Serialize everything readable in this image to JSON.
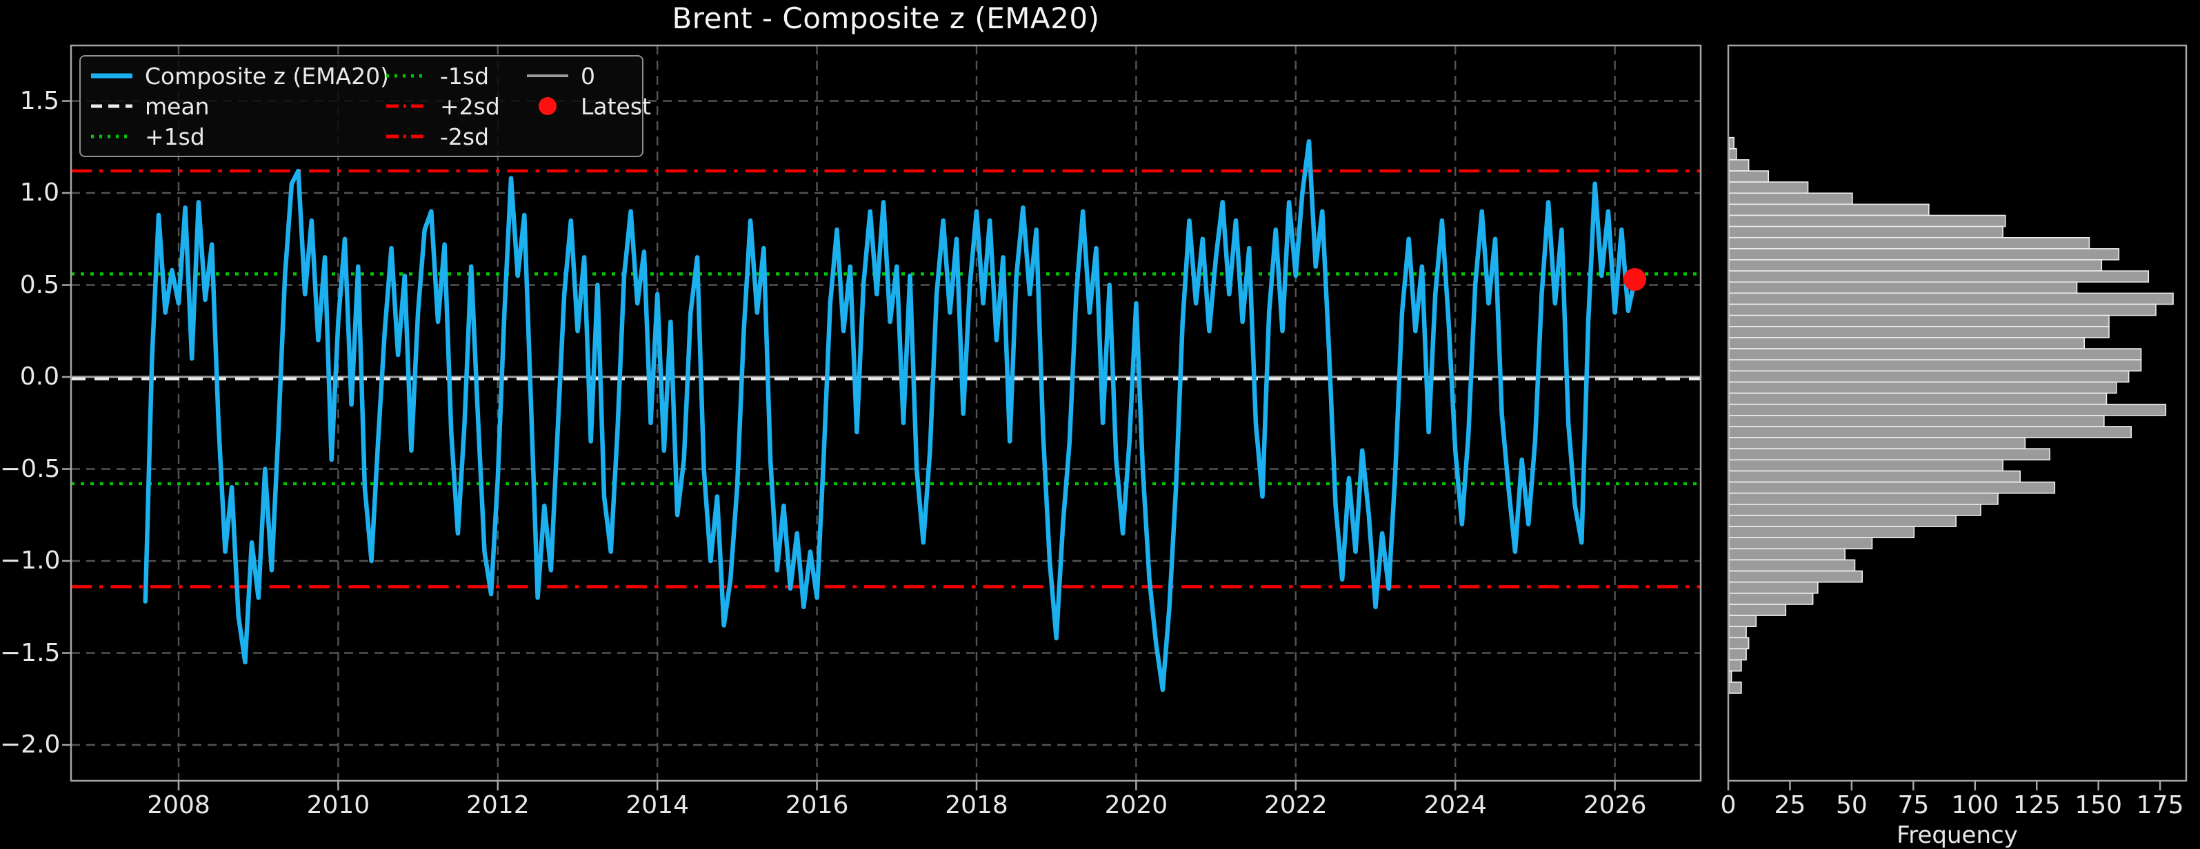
{
  "title": "Brent - Composite z (EMA20)",
  "colors": {
    "background": "#000000",
    "text": "#e8e8e8",
    "spine": "#a6a6a6",
    "grid": "#545454",
    "composite_line": "#1cb0ef",
    "sd1_green": "#00c800",
    "sd2_red": "#f40000",
    "mean_white": "#ececec",
    "zero_gray": "#9c9c9c",
    "latest_red": "#ff1010",
    "bar_fill": "#9b9b9b",
    "bar_edge": "#efefef"
  },
  "legend": {
    "items": [
      {
        "label": "Composite z (EMA20)",
        "swatch": "solid",
        "color": "#1cb0ef",
        "lw": 7
      },
      {
        "label": "-1sd",
        "swatch": "dotted",
        "color": "#00c800",
        "lw": 5
      },
      {
        "label": "0",
        "swatch": "solid",
        "color": "#9c9c9c",
        "lw": 4
      },
      {
        "label": "mean",
        "swatch": "dashed",
        "color": "#ececec",
        "lw": 5
      },
      {
        "label": "+2sd",
        "swatch": "dashdot",
        "color": "#f40000",
        "lw": 5
      },
      {
        "label": "Latest",
        "swatch": "dot",
        "color": "#ff1010",
        "lw": 0
      },
      {
        "label": "+1sd",
        "swatch": "dotted",
        "color": "#00c800",
        "lw": 5
      },
      {
        "label": "-2sd",
        "swatch": "dashdot",
        "color": "#f40000",
        "lw": 5
      }
    ]
  },
  "axes": {
    "main": {
      "x_tick_labels": [
        "2008",
        "2010",
        "2012",
        "2014",
        "2016",
        "2018",
        "2020",
        "2022",
        "2024",
        "2026"
      ],
      "y_tick_labels": [
        "1.5",
        "1.0",
        "0.5",
        "0.0",
        "−0.5",
        "−1.0",
        "−1.5",
        "−2.0"
      ]
    },
    "hist": {
      "x_tick_labels": [
        "0",
        "25",
        "50",
        "75",
        "100",
        "125",
        "150",
        "175"
      ],
      "xlabel": "Frequency"
    }
  },
  "chart_data": [
    {
      "type": "line",
      "title": "Brent - Composite z (EMA20)",
      "xlabel": "",
      "ylabel": "",
      "xlim": [
        2006.65,
        2027.08
      ],
      "ylim": [
        -2.2,
        1.8
      ],
      "x_ticks": [
        2008,
        2010,
        2012,
        2014,
        2016,
        2018,
        2020,
        2022,
        2024,
        2026
      ],
      "y_ticks": [
        1.5,
        1.0,
        0.5,
        0.0,
        -0.5,
        -1.0,
        -1.5,
        -2.0
      ],
      "grid": true,
      "legend_position": "upper left",
      "series": [
        {
          "name": "Composite z (EMA20)",
          "color": "#1cb0ef",
          "x_start": 2007.583,
          "x_step": 0.083333,
          "values": [
            -1.22,
            0.1,
            0.88,
            0.35,
            0.58,
            0.4,
            0.92,
            0.1,
            0.95,
            0.42,
            0.72,
            -0.25,
            -0.95,
            -0.6,
            -1.3,
            -1.55,
            -0.9,
            -1.2,
            -0.5,
            -1.05,
            -0.3,
            0.55,
            1.05,
            1.12,
            0.45,
            0.85,
            0.2,
            0.65,
            -0.45,
            0.3,
            0.75,
            -0.15,
            0.6,
            -0.6,
            -1.0,
            -0.35,
            0.25,
            0.7,
            0.12,
            0.55,
            -0.4,
            0.35,
            0.8,
            0.9,
            0.3,
            0.72,
            -0.3,
            -0.85,
            -0.25,
            0.6,
            -0.2,
            -0.95,
            -1.18,
            -0.55,
            0.35,
            1.08,
            0.55,
            0.88,
            -0.15,
            -1.2,
            -0.7,
            -1.05,
            -0.3,
            0.45,
            0.85,
            0.25,
            0.65,
            -0.35,
            0.5,
            -0.65,
            -0.95,
            -0.3,
            0.55,
            0.9,
            0.4,
            0.68,
            -0.25,
            0.45,
            -0.4,
            0.3,
            -0.75,
            -0.45,
            0.35,
            0.65,
            -0.5,
            -1.0,
            -0.65,
            -1.35,
            -1.1,
            -0.6,
            0.25,
            0.85,
            0.35,
            0.7,
            -0.45,
            -1.05,
            -0.7,
            -1.15,
            -0.85,
            -1.25,
            -0.95,
            -1.2,
            -0.45,
            0.4,
            0.8,
            0.25,
            0.6,
            -0.3,
            0.5,
            0.9,
            0.45,
            0.95,
            0.3,
            0.6,
            -0.25,
            0.55,
            -0.5,
            -0.9,
            -0.4,
            0.45,
            0.85,
            0.35,
            0.75,
            -0.2,
            0.5,
            0.9,
            0.4,
            0.85,
            0.2,
            0.65,
            -0.35,
            0.55,
            0.92,
            0.45,
            0.8,
            -0.3,
            -1.0,
            -1.42,
            -0.8,
            -0.35,
            0.45,
            0.9,
            0.35,
            0.7,
            -0.25,
            0.5,
            -0.45,
            -0.85,
            -0.35,
            0.4,
            -0.5,
            -1.1,
            -1.45,
            -1.7,
            -1.25,
            -0.6,
            0.3,
            0.85,
            0.4,
            0.75,
            0.25,
            0.65,
            0.95,
            0.45,
            0.85,
            0.3,
            0.7,
            -0.25,
            -0.65,
            0.35,
            0.8,
            0.25,
            0.95,
            0.55,
            1.0,
            1.28,
            0.6,
            0.9,
            0.15,
            -0.7,
            -1.1,
            -0.55,
            -0.95,
            -0.4,
            -0.75,
            -1.25,
            -0.85,
            -1.15,
            -0.5,
            0.35,
            0.75,
            0.25,
            0.6,
            -0.3,
            0.45,
            0.85,
            0.3,
            -0.4,
            -0.8,
            -0.3,
            0.5,
            0.9,
            0.4,
            0.75,
            -0.2,
            -0.6,
            -0.95,
            -0.45,
            -0.8,
            -0.35,
            0.45,
            0.95,
            0.4,
            0.8,
            -0.25,
            -0.7,
            -0.9,
            0.3,
            1.05,
            0.55,
            0.9,
            0.35,
            0.8,
            0.36,
            0.53
          ]
        }
      ],
      "reference_lines": [
        {
          "name": "+1sd",
          "value": 0.56,
          "style": "dotted",
          "color": "#00c800"
        },
        {
          "name": "-1sd",
          "value": -0.58,
          "style": "dotted",
          "color": "#00c800"
        },
        {
          "name": "+2sd",
          "value": 1.12,
          "style": "dashdot",
          "color": "#f40000"
        },
        {
          "name": "-2sd",
          "value": -1.14,
          "style": "dashdot",
          "color": "#f40000"
        },
        {
          "name": "0",
          "value": 0.0,
          "style": "solid",
          "color": "#9c9c9c"
        },
        {
          "name": "mean",
          "value": -0.01,
          "style": "dashed",
          "color": "#ececec"
        }
      ],
      "latest_point": {
        "x": 2026.25,
        "y": 0.53,
        "color": "#ff1010",
        "label": "Latest"
      }
    },
    {
      "type": "bar",
      "orientation": "horizontal",
      "xlabel": "Frequency",
      "x_ticks": [
        0,
        25,
        50,
        75,
        100,
        125,
        150,
        175
      ],
      "xlim": [
        0,
        186
      ],
      "shared_y_with_main": true,
      "bin_top": 1.301,
      "bin_width": 0.0604,
      "frequencies_top_to_bottom": [
        2,
        3,
        8,
        16,
        32,
        50,
        81,
        112,
        111,
        146,
        158,
        151,
        170,
        141,
        180,
        173,
        154,
        154,
        144,
        167,
        167,
        162,
        157,
        153,
        177,
        152,
        163,
        120,
        130,
        111,
        118,
        132,
        109,
        102,
        92,
        75,
        58,
        47,
        51,
        54,
        36,
        34,
        23,
        11,
        7,
        8,
        7,
        5,
        1,
        5
      ],
      "bar_color": "#9b9b9b",
      "bar_edge_color": "#efefef"
    }
  ]
}
